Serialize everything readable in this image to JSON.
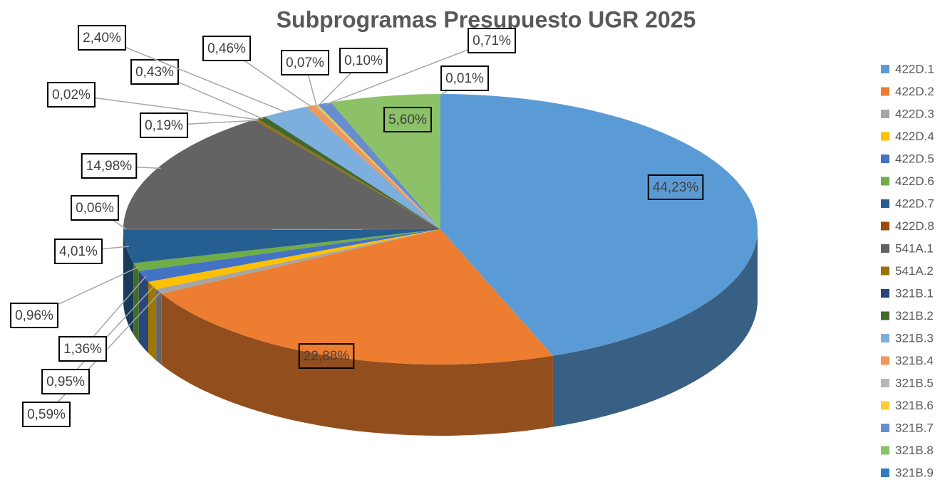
{
  "chart_data": {
    "type": "pie",
    "title": "Subprogramas Presupuesto UGR 2025",
    "categories": [
      "422D.1",
      "422D.2",
      "422D.3",
      "422D.4",
      "422D.5",
      "422D.6",
      "422D.7",
      "422D.8",
      "541A.1",
      "541A.2",
      "321B.1",
      "321B.2",
      "321B.3",
      "321B.4",
      "321B.5",
      "321B.6",
      "321B.7",
      "321B.8",
      "321B.9"
    ],
    "values": [
      44.23,
      22.88,
      0.59,
      0.95,
      1.36,
      0.96,
      4.01,
      0.06,
      14.98,
      0.19,
      0.02,
      0.43,
      2.4,
      0.46,
      0.07,
      0.1,
      0.71,
      5.6,
      0.01
    ],
    "value_labels": [
      "44,23%",
      "22,88%",
      "0,59%",
      "0,95%",
      "1,36%",
      "0,96%",
      "4,01%",
      "0,06%",
      "14,98%",
      "0,19%",
      "0,02%",
      "0,43%",
      "2,40%",
      "0,46%",
      "0,07%",
      "0,10%",
      "0,71%",
      "5,60%",
      "0,01%"
    ],
    "colors": [
      "#5b9bd5",
      "#ed7d31",
      "#a5a5a5",
      "#ffc000",
      "#4472c4",
      "#70ad47",
      "#255e91",
      "#9e480e",
      "#636363",
      "#997300",
      "#264478",
      "#43682b",
      "#7cafdd",
      "#f1975a",
      "#b7b7b7",
      "#ffcd33",
      "#698ed0",
      "#8cc168",
      "#327dc2"
    ],
    "legend": "right"
  }
}
